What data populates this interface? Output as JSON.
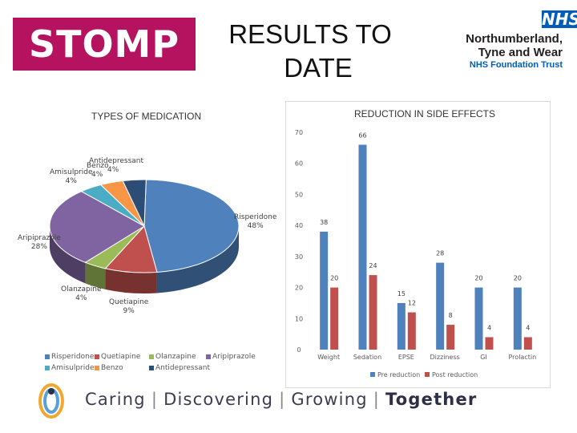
{
  "header": {
    "stomp_logo": "STOMP",
    "title_line1": "RESULTS TO",
    "title_line2": "DATE",
    "nhs_badge": "NHS",
    "trust_line1": "Northumberland,",
    "trust_line2": "Tyne and Wear",
    "trust_line3": "NHS Foundation Trust"
  },
  "footer": {
    "words": [
      "Caring",
      "Discovering",
      "Growing",
      "Together"
    ],
    "separator": "|"
  },
  "chart_data": [
    {
      "type": "pie",
      "title": "TYPES OF MEDICATION",
      "slices": [
        {
          "name": "Risperidone",
          "value": 48,
          "label": "48%",
          "color": "#4f81bd"
        },
        {
          "name": "Quetiapine",
          "value": 9,
          "label": "9%",
          "color": "#c0504d"
        },
        {
          "name": "Olanzapine",
          "value": 4,
          "label": "4%",
          "color": "#9bbb59"
        },
        {
          "name": "Aripiprazole",
          "value": 28,
          "label": "28%",
          "color": "#8064a2"
        },
        {
          "name": "Amisulpride",
          "value": 4,
          "label": "4%",
          "color": "#4bacc6"
        },
        {
          "name": "Benzo",
          "value": 4,
          "label": "4%",
          "color": "#f79646"
        },
        {
          "name": "Antidepressant",
          "value": 4,
          "label": "4%",
          "color": "#2c4d75"
        }
      ],
      "legend": [
        "Risperidone",
        "Quetiapine",
        "Olanzapine",
        "Aripiprazole",
        "Amisulpride",
        "Benzo",
        "Antidepressant"
      ],
      "legend_position": "bottom"
    },
    {
      "type": "bar",
      "title": "REDUCTION IN SIDE EFFECTS",
      "categories": [
        "Weight",
        "Sedation",
        "EPSE",
        "Dizziness",
        "GI",
        "Prolactin"
      ],
      "series": [
        {
          "name": "Pre reduction",
          "color": "#4f81bd",
          "values": [
            38,
            66,
            15,
            28,
            20,
            20
          ]
        },
        {
          "name": "Post reduction",
          "color": "#c0504d",
          "values": [
            20,
            24,
            12,
            8,
            4,
            4
          ]
        }
      ],
      "yticks": [
        0,
        10,
        20,
        30,
        40,
        50,
        60,
        70
      ],
      "ylim": [
        0,
        70
      ],
      "xlabel": "",
      "ylabel": "",
      "legend_position": "bottom"
    }
  ]
}
